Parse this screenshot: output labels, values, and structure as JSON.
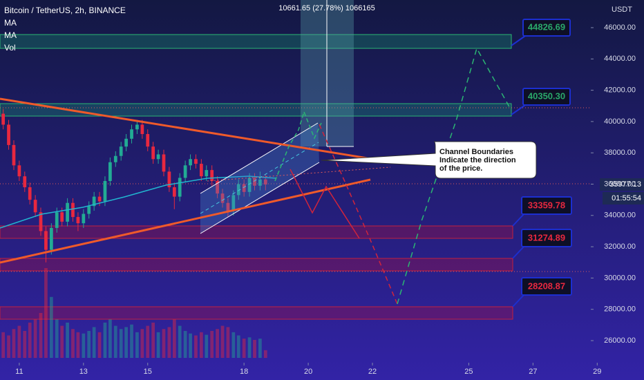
{
  "chart_data": {
    "type": "candlestick",
    "title": "Bitcoin / TetherUS, 2h, BINANCE",
    "indicators": [
      "MA",
      "MA",
      "Vol"
    ],
    "measure_label": "10661.65 (27.78%) 1066165",
    "currency": "USDT",
    "up_color": "#22ab94",
    "down_color": "#e8283f",
    "x": [
      10.5,
      10.67,
      10.83,
      11,
      11.17,
      11.33,
      11.5,
      11.67,
      11.83,
      12,
      12.17,
      12.33,
      12.5,
      12.67,
      12.83,
      13,
      13.17,
      13.33,
      13.5,
      13.67,
      13.83,
      14,
      14.17,
      14.33,
      14.5,
      14.67,
      14.83,
      15,
      15.17,
      15.33,
      15.5,
      15.67,
      15.83,
      16,
      16.17,
      16.33,
      16.5,
      16.67,
      16.83,
      17,
      17.17,
      17.33,
      17.5,
      17.67,
      17.83,
      18,
      18.17,
      18.33,
      18.5,
      18.67
    ],
    "open": [
      40500,
      39800,
      38500,
      37200,
      36500,
      35800,
      35000,
      34200,
      33000,
      31800,
      33200,
      34200,
      33600,
      34800,
      33900,
      33500,
      34100,
      34600,
      35200,
      34900,
      36200,
      37400,
      37800,
      38400,
      38900,
      39500,
      39800,
      39200,
      38400,
      37600,
      37900,
      36800,
      35800,
      35200,
      36400,
      37200,
      37600,
      37300,
      36500,
      36900,
      36200,
      35400,
      34800,
      34300,
      35300,
      36000,
      35500,
      36400,
      35900,
      36300
    ],
    "high": [
      40800,
      40100,
      38800,
      37500,
      36800,
      36100,
      35300,
      34500,
      33300,
      33500,
      34500,
      34500,
      35100,
      35100,
      34200,
      34400,
      34900,
      35500,
      35500,
      36500,
      37700,
      38100,
      38700,
      39200,
      39800,
      40100,
      40100,
      39500,
      38700,
      38200,
      38200,
      37100,
      36100,
      36700,
      37500,
      37900,
      37900,
      37600,
      37200,
      37200,
      36500,
      35700,
      35100,
      35600,
      36300,
      36300,
      36700,
      36700,
      36800,
      36600
    ],
    "low": [
      39500,
      38200,
      36900,
      36200,
      35500,
      34700,
      33900,
      32700,
      31000,
      31500,
      32900,
      33300,
      33300,
      33600,
      33000,
      33200,
      33800,
      34300,
      34600,
      34600,
      35900,
      37100,
      37500,
      38100,
      38600,
      39200,
      38900,
      38100,
      37300,
      37300,
      36500,
      35500,
      34400,
      34900,
      36100,
      36900,
      37000,
      36200,
      36200,
      35900,
      35100,
      34500,
      33900,
      34000,
      35000,
      35200,
      35200,
      35600,
      35600,
      35600
    ],
    "close": [
      39800,
      38500,
      37200,
      36500,
      35800,
      35000,
      34200,
      33000,
      31800,
      33200,
      34200,
      33600,
      34800,
      33900,
      33500,
      34100,
      34600,
      35200,
      34900,
      36200,
      37400,
      37800,
      38400,
      38900,
      39500,
      39800,
      39200,
      38400,
      37600,
      37900,
      36800,
      35800,
      35200,
      36400,
      37200,
      37600,
      37300,
      36500,
      36900,
      36200,
      35400,
      34800,
      34300,
      35300,
      36000,
      35500,
      36400,
      35900,
      36300,
      35977
    ],
    "volume": [
      40,
      35,
      45,
      50,
      42,
      55,
      60,
      70,
      140,
      95,
      60,
      50,
      55,
      45,
      40,
      38,
      42,
      48,
      40,
      55,
      60,
      50,
      45,
      48,
      52,
      40,
      45,
      50,
      55,
      40,
      45,
      48,
      60,
      50,
      42,
      38,
      35,
      40,
      36,
      42,
      45,
      50,
      48,
      40,
      35,
      30,
      32,
      28,
      30,
      12
    ],
    "xlim": [
      10.4,
      28.8
    ],
    "xticks": [
      11,
      13,
      15,
      18,
      20,
      22,
      25,
      27,
      29
    ],
    "ylim": [
      24000,
      48000
    ],
    "yticks": [
      {
        "value": 26000,
        "label": "26000.00"
      },
      {
        "value": 28000,
        "label": "28000.00"
      },
      {
        "value": 30000,
        "label": "30000.00"
      },
      {
        "value": 32000,
        "label": "32000.00"
      },
      {
        "value": 34000,
        "label": "34000.00"
      },
      {
        "value": 36000,
        "label": "36000.00"
      },
      {
        "value": 38000,
        "label": "38000.00"
      },
      {
        "value": 40000,
        "label": "40000.00"
      },
      {
        "value": 42000,
        "label": "42000.00"
      },
      {
        "value": 44000,
        "label": "44000.00"
      },
      {
        "value": 46000,
        "label": "46000.00"
      }
    ],
    "last_price": "35977.13",
    "countdown": "01:55:54",
    "targets": [
      "44826.69",
      "40350.30"
    ],
    "supports": [
      "33359.78",
      "31274.89",
      "28208.87"
    ],
    "callout": [
      "Channel Boundaries",
      "Indicate the direction",
      "of the price."
    ]
  }
}
